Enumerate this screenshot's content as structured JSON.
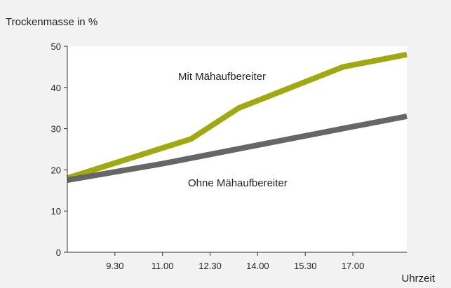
{
  "chart_data": {
    "type": "line",
    "ylabel": "Trockenmasse in %",
    "xlabel": "Uhrzeit",
    "ylim": [
      0,
      50
    ],
    "yticks": [
      "0",
      "10",
      "20",
      "30",
      "40",
      "50"
    ],
    "xticks": [
      "9.30",
      "11.00",
      "12.30",
      "14.00",
      "15.30",
      "17.00"
    ],
    "xtick_hours": [
      9.5,
      11.0,
      12.5,
      14.0,
      15.5,
      17.0
    ],
    "xlim_hours": [
      8.0,
      18.7
    ],
    "grid": false,
    "series": [
      {
        "name": "Mit Mähaufbereiter",
        "color": "#a0a812",
        "points": [
          [
            8.0,
            18
          ],
          [
            11.9,
            27.5
          ],
          [
            13.4,
            35
          ],
          [
            16.7,
            45
          ],
          [
            18.7,
            48
          ]
        ]
      },
      {
        "name": "Ohne Mähaufbereiter",
        "color": "#666666",
        "points": [
          [
            8.0,
            17.5
          ],
          [
            11.0,
            21.5
          ],
          [
            14.0,
            26
          ],
          [
            17.0,
            30.5
          ],
          [
            18.7,
            33
          ]
        ]
      }
    ]
  },
  "colors": {
    "background": "#f2f2f2",
    "plot_background": "#ffffff",
    "axis": "#333333"
  }
}
